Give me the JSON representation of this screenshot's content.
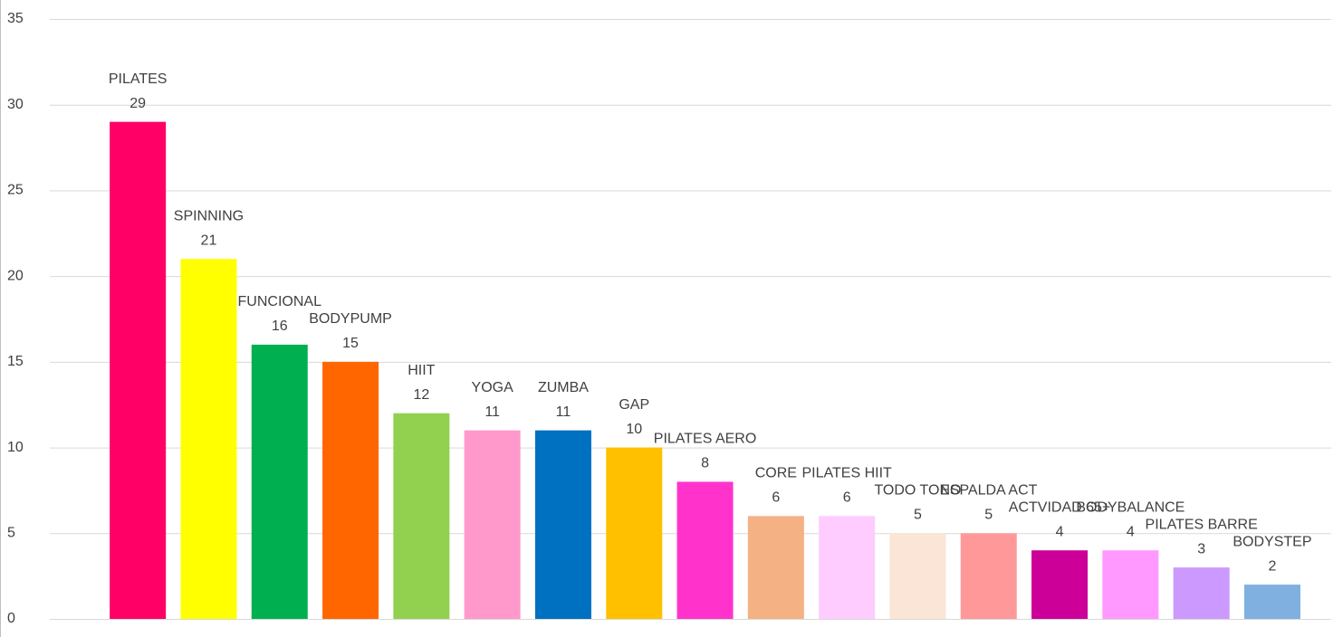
{
  "chart_data": {
    "type": "bar",
    "categories": [
      "PILATES",
      "SPINNING",
      "FUNCIONAL",
      "BODYPUMP",
      "HIIT",
      "YOGA",
      "ZUMBA",
      "GAP",
      "PILATES AERO",
      "CORE",
      "PILATES HIIT",
      "TODO TONO",
      "ESPALDA ACT",
      "ACTVIDAD 65+",
      "BODYBALANCE",
      "PILATES BARRE",
      "BODYSTEP"
    ],
    "values": [
      29,
      21,
      16,
      15,
      12,
      11,
      11,
      10,
      8,
      6,
      6,
      5,
      5,
      4,
      4,
      3,
      2
    ],
    "colors": [
      "#ff0066",
      "#ffff00",
      "#00b050",
      "#ff6600",
      "#92d050",
      "#ff99cc",
      "#0070c0",
      "#ffc000",
      "#ff33cc",
      "#f4b183",
      "#ffccff",
      "#fbe5d6",
      "#ff9999",
      "#cc0099",
      "#ff99ff",
      "#cc99ff",
      "#7fb0e0"
    ],
    "ylim": [
      0,
      35
    ],
    "yticks": [
      0,
      5,
      10,
      15,
      20,
      25,
      30,
      35
    ],
    "grid": true
  }
}
